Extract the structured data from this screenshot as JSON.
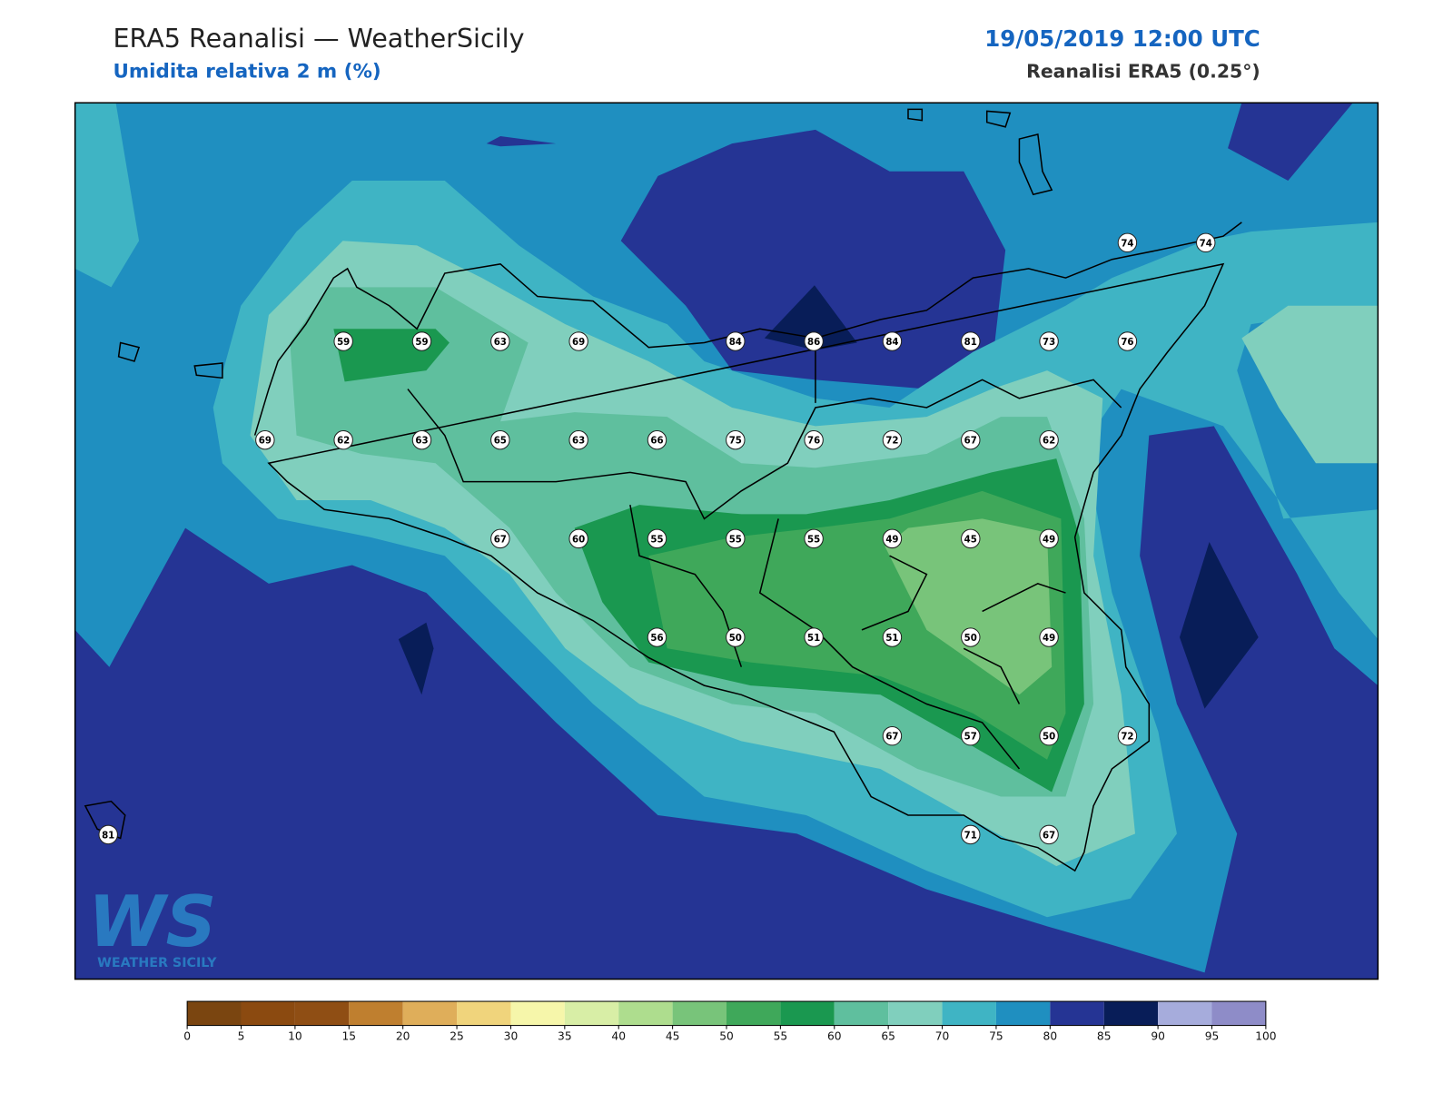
{
  "header": {
    "title": "ERA5 Reanalisi — WeatherSicily",
    "subtitle": "Umidita relativa 2 m (%)",
    "datetime": "19/05/2019 12:00 UTC",
    "source": "Reanalisi ERA5 (0.25°)"
  },
  "logo": {
    "mark": "WS",
    "text": "WEATHER SICILY"
  },
  "stations": [
    74,
    74,
    59,
    59,
    63,
    69,
    84,
    86,
    84,
    81,
    73,
    76,
    69,
    62,
    63,
    65,
    63,
    66,
    75,
    76,
    72,
    67,
    62,
    67,
    60,
    55,
    55,
    55,
    49,
    45,
    49,
    56,
    50,
    51,
    51,
    50,
    49,
    67,
    57,
    50,
    72,
    81,
    71,
    67
  ],
  "colorbar": {
    "ticks": [
      0,
      5,
      10,
      15,
      20,
      25,
      30,
      35,
      40,
      45,
      50,
      55,
      60,
      65,
      70,
      75,
      80,
      85,
      90,
      95,
      100
    ],
    "colors": [
      "#7a4510",
      "#8b4a10",
      "#8f4e14",
      "#bf7f2f",
      "#dfae5a",
      "#f0d47c",
      "#f6f6aa",
      "#d8eea6",
      "#aedd8e",
      "#78c47a",
      "#3fa85a",
      "#1a9850",
      "#5fbf9e",
      "#80cfbd",
      "#3fb4c4",
      "#1f8fc0",
      "#253494",
      "#081d58",
      "#a6acdc",
      "#8e8cc8"
    ]
  }
}
